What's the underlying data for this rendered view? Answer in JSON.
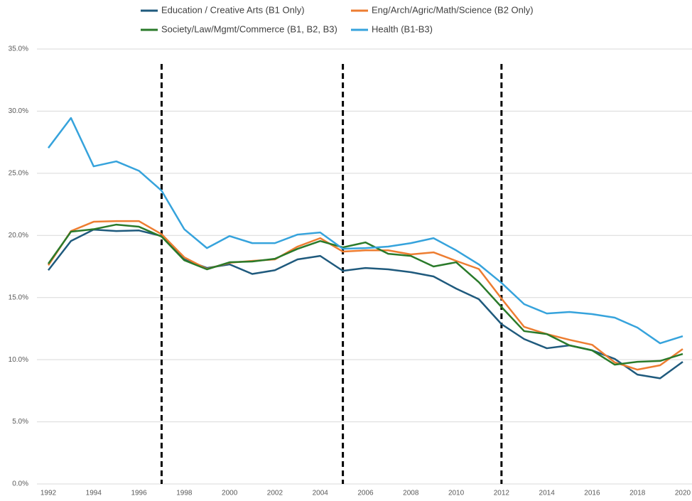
{
  "chart_data": {
    "type": "line",
    "x": [
      1992,
      1993,
      1994,
      1995,
      1996,
      1997,
      1998,
      1999,
      2000,
      2001,
      2002,
      2003,
      2004,
      2005,
      2006,
      2007,
      2008,
      2009,
      2010,
      2011,
      2012,
      2013,
      2014,
      2015,
      2016,
      2017,
      2018,
      2019,
      2020
    ],
    "xlim": [
      1992,
      2020
    ],
    "xticks": [
      1992,
      1994,
      1996,
      1998,
      2000,
      2002,
      2004,
      2006,
      2008,
      2010,
      2012,
      2014,
      2016,
      2018,
      2020
    ],
    "ylim": [
      0,
      35
    ],
    "yticks": [
      {
        "value": 0,
        "label": "0.0%"
      },
      {
        "value": 5,
        "label": "5.0%"
      },
      {
        "value": 10,
        "label": "10.0%"
      },
      {
        "value": 15,
        "label": "15.0%"
      },
      {
        "value": 20,
        "label": "20.0%"
      },
      {
        "value": 25,
        "label": "25.0%"
      },
      {
        "value": 30,
        "label": "30.0%"
      },
      {
        "value": 35,
        "label": "35.0%"
      }
    ],
    "grid": true,
    "legend": "top",
    "vlines": [
      1997,
      2005,
      2012
    ],
    "series": [
      {
        "name": "Education / Creative Arts (B1 Only)",
        "color": "#1f5a7d",
        "values": [
          17.2,
          19.55,
          20.47,
          20.35,
          20.4,
          19.95,
          18.07,
          17.38,
          17.67,
          16.9,
          17.2,
          18.07,
          18.35,
          17.15,
          17.38,
          17.27,
          17.04,
          16.7,
          15.72,
          14.87,
          12.86,
          11.66,
          10.92,
          11.15,
          10.75,
          10.06,
          8.8,
          8.5,
          9.83
        ]
      },
      {
        "name": "Eng/Arch/Agric/Math/Science (B2 Only)",
        "color": "#ed7d31",
        "values": [
          17.6,
          20.35,
          21.1,
          21.15,
          21.15,
          20.1,
          18.24,
          17.3,
          17.8,
          17.95,
          18.07,
          19.1,
          19.78,
          18.7,
          18.8,
          18.8,
          18.47,
          18.64,
          17.95,
          17.3,
          14.92,
          12.64,
          12.06,
          11.6,
          11.2,
          9.78,
          9.2,
          9.55,
          10.86
        ]
      },
      {
        "name": "Society/Law/Mgmt/Commerce (B1, B2, B3)",
        "color": "#2a7a2a",
        "values": [
          17.72,
          20.3,
          20.5,
          20.87,
          20.7,
          19.9,
          18.0,
          17.27,
          17.84,
          17.9,
          18.12,
          18.92,
          19.55,
          19.04,
          19.44,
          18.52,
          18.35,
          17.5,
          17.84,
          16.24,
          14.24,
          12.3,
          12.06,
          11.15,
          10.75,
          9.6,
          9.83,
          9.9,
          10.46
        ]
      },
      {
        "name": "Health (B1-B3)",
        "color": "#36a3dc",
        "values": [
          27.04,
          29.45,
          25.56,
          25.96,
          25.2,
          23.6,
          20.5,
          18.98,
          19.95,
          19.38,
          19.38,
          20.07,
          20.24,
          18.92,
          18.98,
          19.1,
          19.38,
          19.78,
          18.8,
          17.67,
          16.18,
          14.47,
          13.72,
          13.84,
          13.67,
          13.38,
          12.58,
          11.32,
          11.89
        ]
      }
    ]
  }
}
